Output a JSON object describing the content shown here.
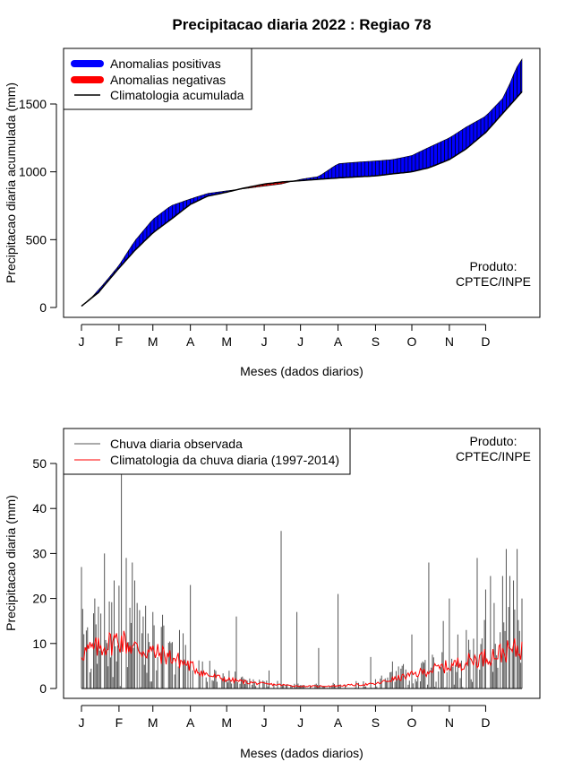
{
  "title": "Precipitacao diaria 2022 : Regiao 78",
  "product_label_line1": "Produto:",
  "product_label_line2": "CPTEC/INPE",
  "colors": {
    "positive": "#0000ff",
    "negative": "#ff0000",
    "climatology": "#000000",
    "observed": "#000000",
    "clim_daily": "#ff0000"
  },
  "months": [
    "J",
    "F",
    "M",
    "A",
    "M",
    "J",
    "J",
    "A",
    "S",
    "O",
    "N",
    "D"
  ],
  "chart_data": [
    {
      "type": "area",
      "title": "Precipitacao diaria 2022 : Regiao 78",
      "xlabel": "Meses (dados diarios)",
      "ylabel": "Precipitacao diaria acumulada (mm)",
      "x_ticks": [
        "J",
        "F",
        "M",
        "A",
        "M",
        "J",
        "J",
        "A",
        "S",
        "O",
        "N",
        "D"
      ],
      "y_ticks": [
        0,
        500,
        1000,
        1500
      ],
      "xlim": [
        1,
        365
      ],
      "ylim": [
        0,
        1850
      ],
      "legend": [
        {
          "label": "Anomalias positivas",
          "style": "thick-blue"
        },
        {
          "label": "Anomalias negativas",
          "style": "thick-red"
        },
        {
          "label": "Climatologia acumulada",
          "style": "line-black"
        }
      ],
      "legend_position": "top-left",
      "climatology_cumulative": {
        "day": [
          1,
          15,
          32,
          45,
          60,
          75,
          91,
          105,
          121,
          135,
          152,
          166,
          182,
          197,
          213,
          227,
          244,
          258,
          274,
          288,
          305,
          319,
          335,
          349,
          365
        ],
        "value": [
          10,
          110,
          290,
          420,
          550,
          650,
          760,
          820,
          850,
          880,
          910,
          925,
          935,
          945,
          955,
          962,
          970,
          985,
          1000,
          1030,
          1090,
          1170,
          1290,
          1430,
          1590
        ]
      },
      "observed_cumulative": {
        "day": [
          1,
          10,
          20,
          32,
          45,
          60,
          75,
          91,
          105,
          121,
          135,
          152,
          166,
          182,
          197,
          213,
          227,
          244,
          258,
          274,
          288,
          305,
          319,
          335,
          349,
          355,
          360,
          365
        ],
        "value": [
          10,
          80,
          180,
          310,
          490,
          650,
          750,
          800,
          840,
          860,
          875,
          895,
          910,
          945,
          965,
          1060,
          1070,
          1080,
          1090,
          1120,
          1180,
          1250,
          1330,
          1410,
          1540,
          1650,
          1760,
          1830
        ]
      }
    },
    {
      "type": "bar",
      "title": "",
      "xlabel": "Meses (dados diarios)",
      "ylabel": "Precipitacao diaria (mm)",
      "x_ticks": [
        "J",
        "F",
        "M",
        "A",
        "M",
        "J",
        "J",
        "A",
        "S",
        "O",
        "N",
        "D"
      ],
      "y_ticks": [
        0,
        10,
        20,
        30,
        40,
        50
      ],
      "xlim": [
        1,
        365
      ],
      "ylim": [
        0,
        55
      ],
      "legend": [
        {
          "label": "Chuva diaria observada",
          "style": "line-gray"
        },
        {
          "label": "Climatologia da chuva diaria (1997-2014)",
          "style": "line-red"
        }
      ],
      "legend_position": "top-left",
      "observed_peaks": {
        "day": [
          1,
          12,
          20,
          28,
          34,
          38,
          43,
          45,
          47,
          52,
          60,
          69,
          82,
          91,
          101,
          129,
          156,
          166,
          179,
          197,
          213,
          240,
          258,
          274,
          283,
          288,
          300,
          305,
          312,
          319,
          328,
          335,
          339,
          342,
          349,
          352,
          355,
          358,
          361,
          365
        ],
        "value": [
          27,
          20,
          30,
          24,
          48,
          29,
          28,
          24,
          19,
          16,
          17,
          14,
          13,
          23,
          6,
          16,
          4,
          35,
          17,
          9,
          21,
          7,
          6,
          12,
          6,
          28,
          15,
          20,
          12,
          13,
          29,
          22,
          25,
          19,
          25,
          31,
          25,
          24,
          31,
          20
        ]
      },
      "climatology_daily": {
        "day": [
          1,
          15,
          32,
          45,
          60,
          75,
          91,
          105,
          121,
          135,
          152,
          166,
          182,
          197,
          213,
          227,
          244,
          258,
          274,
          288,
          305,
          319,
          335,
          349,
          365
        ],
        "value": [
          8,
          9,
          11,
          9,
          8,
          7,
          5,
          3,
          2,
          1.5,
          1,
          0.8,
          0.5,
          0.5,
          0.6,
          0.8,
          1,
          2,
          3,
          4,
          5,
          6,
          7,
          8,
          9
        ]
      }
    }
  ]
}
